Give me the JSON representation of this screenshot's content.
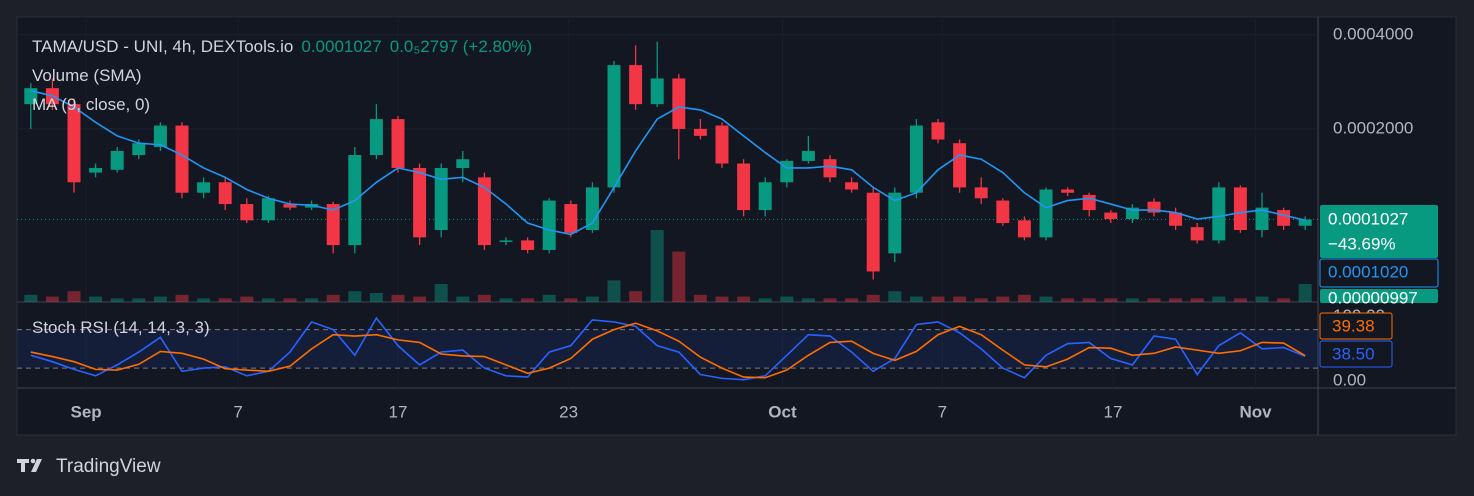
{
  "header": {
    "brand": "TradingView"
  },
  "chart_data": {
    "type": "candlestick",
    "title": "TAMA/USD - UNI, 4h, DEXTools.io",
    "last_price": 0.0001027,
    "change": "0.0₅2797 (+2.80%)",
    "last_change": {
      "value": -43.69,
      "label": "−43.69%"
    },
    "log_scale": true,
    "grid": true,
    "up_color": "#089981",
    "down_color": "#f23645",
    "xlim": [
      0,
      60
    ],
    "xticks": [
      {
        "value": 3.06,
        "label": "Sep"
      },
      {
        "value": 10.1,
        "label": "7"
      },
      {
        "value": 17.5,
        "label": "17"
      },
      {
        "value": 25.4,
        "label": "23"
      },
      {
        "value": 35.3,
        "label": "Oct"
      },
      {
        "value": 42.7,
        "label": "7"
      },
      {
        "value": 50.6,
        "label": "17"
      },
      {
        "value": 57.2,
        "label": "Nov"
      }
    ],
    "ylim": [
      5.59e-05,
      0.000456
    ],
    "yticks": [
      {
        "value": 0.0004,
        "label": "0.0004000"
      },
      {
        "value": 0.0002,
        "label": "0.0002000"
      }
    ],
    "open": [
      0.00024,
      0.00027,
      0.00024,
      0.000145,
      0.000148,
      0.000165,
      0.000175,
      0.000205,
      0.000125,
      0.000135,
      0.000115,
      0.000102,
      0.000115,
      0.000112,
      0.000115,
      8.5e-05,
      0.000165,
      0.000215,
      0.00015,
      9.5e-05,
      0.00015,
      0.00014,
      8.7e-05,
      8.8e-05,
      8.2e-05,
      0.000115,
      9.5e-05,
      0.00013,
      0.00032,
      0.00024,
      0.00029,
      0.0002,
      0.000205,
      0.000155,
      0.00011,
      0.000135,
      0.000158,
      0.00016,
      0.000135,
      0.000125,
      8e-05,
      0.000125,
      0.00021,
      0.00018,
      0.00013,
      0.000118,
      0.000102,
      9e-05,
      0.000128,
      0.000123,
      0.000108,
      0.000103,
      0.000117,
      0.000108,
      9.7e-05,
      8.8e-05,
      0.00013,
      9.5e-05,
      0.00011,
      9.8e-05
    ],
    "high": [
      0.00028,
      0.00029,
      0.00025,
      0.000155,
      0.000175,
      0.000185,
      0.00021,
      0.00021,
      0.00014,
      0.00014,
      0.00012,
      0.000122,
      0.000118,
      0.000118,
      0.000117,
      0.000175,
      0.00024,
      0.00022,
      0.000155,
      0.000155,
      0.00017,
      0.000145,
      9e-05,
      9e-05,
      0.00012,
      0.000118,
      0.000135,
      0.00033,
      0.00037,
      0.00038,
      0.0003,
      0.000215,
      0.00021,
      0.00016,
      0.00014,
      0.00016,
      0.00019,
      0.000165,
      0.00014,
      0.00013,
      0.00013,
      0.000215,
      0.000215,
      0.000185,
      0.00014,
      0.00012,
      0.000105,
      0.00013,
      0.00013,
      0.000125,
      0.00011,
      0.000115,
      0.00012,
      0.000112,
      0.0001,
      0.000135,
      0.000132,
      0.000125,
      0.000112,
      0.000105
    ],
    "low": [
      0.0002,
      0.00023,
      0.000125,
      0.00014,
      0.000145,
      0.00016,
      0.00017,
      0.00012,
      0.00012,
      0.00011,
      0.0001,
      0.0001,
      0.00011,
      0.00011,
      8e-05,
      8e-05,
      0.00016,
      0.000145,
      8.5e-05,
      9e-05,
      0.000135,
      8.2e-05,
      8.5e-05,
      8e-05,
      8e-05,
      9e-05,
      9.3e-05,
      0.000125,
      0.00023,
      0.000235,
      0.00016,
      0.000185,
      0.00015,
      0.000105,
      0.000105,
      0.00013,
      0.000155,
      0.000135,
      0.000125,
      6.6e-05,
      7.5e-05,
      0.00012,
      0.00018,
      0.000125,
      0.000115,
      9.8e-05,
      8.8e-05,
      8.8e-05,
      0.000122,
      0.000105,
      0.0001,
      0.0001,
      0.000105,
      9.5e-05,
      8.6e-05,
      8.6e-05,
      9.3e-05,
      9e-05,
      9.5e-05,
      9.5e-05
    ],
    "close": [
      0.00027,
      0.00024,
      0.000135,
      0.00015,
      0.00017,
      0.00018,
      0.000205,
      0.000125,
      0.000135,
      0.000115,
      0.000102,
      0.00012,
      0.000112,
      0.000115,
      8.5e-05,
      0.000165,
      0.000215,
      0.00015,
      9e-05,
      0.00015,
      0.00016,
      8.5e-05,
      8.8e-05,
      8.2e-05,
      0.000118,
      9.3e-05,
      0.00013,
      0.00032,
      0.00024,
      0.00029,
      0.0002,
      0.00019,
      0.000155,
      0.00011,
      0.000135,
      0.000158,
      0.00017,
      0.00014,
      0.000128,
      7e-05,
      0.000125,
      0.000205,
      0.000185,
      0.00013,
      0.00012,
      0.0001,
      9e-05,
      0.000128,
      0.000125,
      0.00011,
      0.000103,
      0.000112,
      0.000108,
      9.8e-05,
      8.8e-05,
      0.00013,
      9.5e-05,
      0.000112,
      9.8e-05,
      0.0001027
    ],
    "volume": {
      "name": "Volume (SMA)",
      "ylim": [
        0,
        6e-05
      ],
      "values": [
        4e-06,
        3e-06,
        6e-06,
        3e-06,
        2e-06,
        2e-06,
        3e-06,
        4e-06,
        2e-06,
        2e-06,
        3e-06,
        2e-06,
        2e-06,
        2e-06,
        4e-06,
        6e-06,
        5e-06,
        4e-06,
        3e-06,
        1e-05,
        3e-06,
        4e-06,
        2e-06,
        2e-06,
        4e-06,
        2e-06,
        3e-06,
        1.2e-05,
        6e-06,
        4e-05,
        2.8e-05,
        4e-06,
        3e-06,
        3e-06,
        2e-06,
        3e-06,
        2e-06,
        2e-06,
        2e-06,
        4e-06,
        6e-06,
        3e-06,
        3e-06,
        3e-06,
        2e-06,
        3e-06,
        4e-06,
        3e-06,
        2e-06,
        2e-06,
        2e-06,
        2e-06,
        2e-06,
        2e-06,
        2e-06,
        3e-06,
        2e-06,
        3e-06,
        2e-06,
        9.97e-06
      ],
      "last": {
        "value": 9.97e-06,
        "label": "0.00000997"
      }
    },
    "ma": {
      "name": "MA (9, close, 0)",
      "color": "#2196f3",
      "values": [
        0.000265,
        0.000255,
        0.000235,
        0.00021,
        0.00019,
        0.00018,
        0.000178,
        0.000165,
        0.00015,
        0.00014,
        0.000128,
        0.00012,
        0.000115,
        0.000114,
        0.00011,
        0.000118,
        0.000135,
        0.00015,
        0.000145,
        0.000138,
        0.00014,
        0.00013,
        0.000115,
        0.0001,
        9.5e-05,
        9.2e-05,
        0.0001,
        0.00013,
        0.00017,
        0.000215,
        0.000235,
        0.00023,
        0.000215,
        0.00019,
        0.000168,
        0.00015,
        0.00015,
        0.000152,
        0.000148,
        0.00013,
        0.000118,
        0.000125,
        0.000148,
        0.000165,
        0.00016,
        0.000145,
        0.000125,
        0.000112,
        0.000118,
        0.00012,
        0.000115,
        0.00011,
        0.00011,
        0.000108,
        0.000103,
        0.000105,
        0.000108,
        0.00011,
        0.000106,
        0.000102
      ],
      "last": {
        "value": 0.000102,
        "label": "0.0001020"
      }
    },
    "stoch": {
      "name": "Stoch RSI (14, 14, 3, 3)",
      "ylim": [
        -11,
        123
      ],
      "yticks": [
        {
          "value": 0,
          "label": "0.00"
        },
        {
          "value": 100,
          "label": "100.00"
        }
      ],
      "bands": [
        20,
        80
      ],
      "series": [
        {
          "color": "#2962ff",
          "values": [
            40,
            30,
            18,
            8,
            25,
            45,
            68,
            15,
            20,
            22,
            8,
            15,
            45,
            92,
            80,
            40,
            98,
            55,
            25,
            45,
            48,
            20,
            8,
            6,
            45,
            55,
            95,
            92,
            85,
            55,
            45,
            10,
            4,
            2,
            8,
            40,
            72,
            70,
            45,
            15,
            35,
            88,
            92,
            75,
            50,
            20,
            5,
            40,
            58,
            60,
            35,
            25,
            70,
            65,
            10,
            55,
            75,
            50,
            52,
            38.5
          ],
          "last": {
            "value": 38.5,
            "label": "38.50"
          }
        },
        {
          "color": "#ff6d00",
          "values": [
            45,
            38,
            30,
            18,
            17,
            26,
            46,
            43,
            34,
            19,
            17,
            15,
            23,
            50,
            72,
            70,
            72,
            64,
            60,
            42,
            39,
            38,
            25,
            12,
            20,
            35,
            65,
            80,
            90,
            78,
            62,
            37,
            20,
            6,
            5,
            17,
            40,
            60,
            62,
            43,
            32,
            46,
            72,
            85,
            72,
            48,
            25,
            22,
            34,
            52,
            51,
            40,
            43,
            53,
            48,
            43,
            47,
            60,
            59,
            39.38
          ],
          "last": 39.38
        }
      ]
    }
  }
}
